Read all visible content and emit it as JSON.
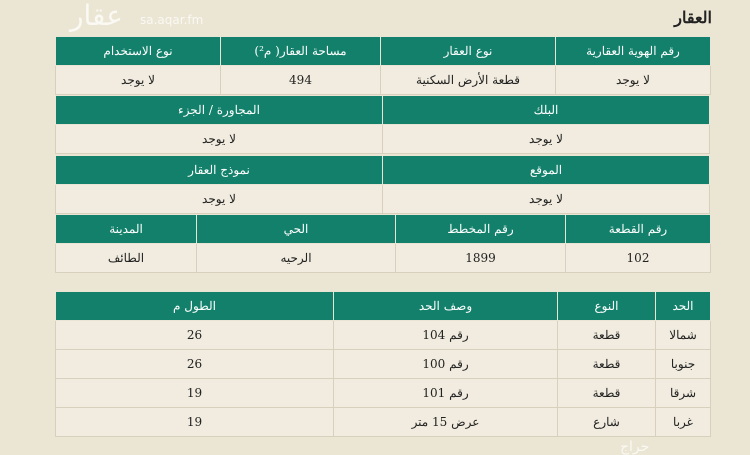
{
  "title": "العقار",
  "t1": {
    "headers": [
      "رقم الهوية العقارية",
      "نوع العقار",
      "مساحة العقار( م²)",
      "نوع الاستخدام"
    ],
    "values": [
      "لا يوجد",
      "قطعة الأرض السكنية",
      "494",
      "لا يوجد"
    ]
  },
  "t2": {
    "headers": [
      "البلك",
      "المجاورة / الجزء"
    ],
    "values": [
      "لا يوجد",
      "لا يوجد"
    ]
  },
  "t3": {
    "headers": [
      "الموقع",
      "نموذج العقار"
    ],
    "values": [
      "لا يوجد",
      "لا يوجد"
    ]
  },
  "t4": {
    "headers": [
      "رقم القطعة",
      "رقم المخطط",
      "الحي",
      "المدينة"
    ],
    "values": [
      "102",
      "1899",
      "الرحيه",
      "الطائف"
    ]
  },
  "bounds": {
    "headers": [
      "الحد",
      "النوع",
      "وصف الحد",
      "الطول م"
    ],
    "rows": [
      [
        "شمالا",
        "قطعة",
        "رقم 104",
        "26"
      ],
      [
        "جنوبا",
        "قطعة",
        "رقم 100",
        "26"
      ],
      [
        "شرقا",
        "قطعة",
        "رقم 101",
        "19"
      ],
      [
        "غربا",
        "شارع",
        "عرض 15 متر",
        "19"
      ]
    ]
  },
  "watermarks": {
    "aqar": "عقار",
    "aqar_url": "sa.aqar.fm",
    "haraj": "حراج"
  },
  "colors": {
    "header": "#12806a",
    "background": "#ebe5d3"
  }
}
